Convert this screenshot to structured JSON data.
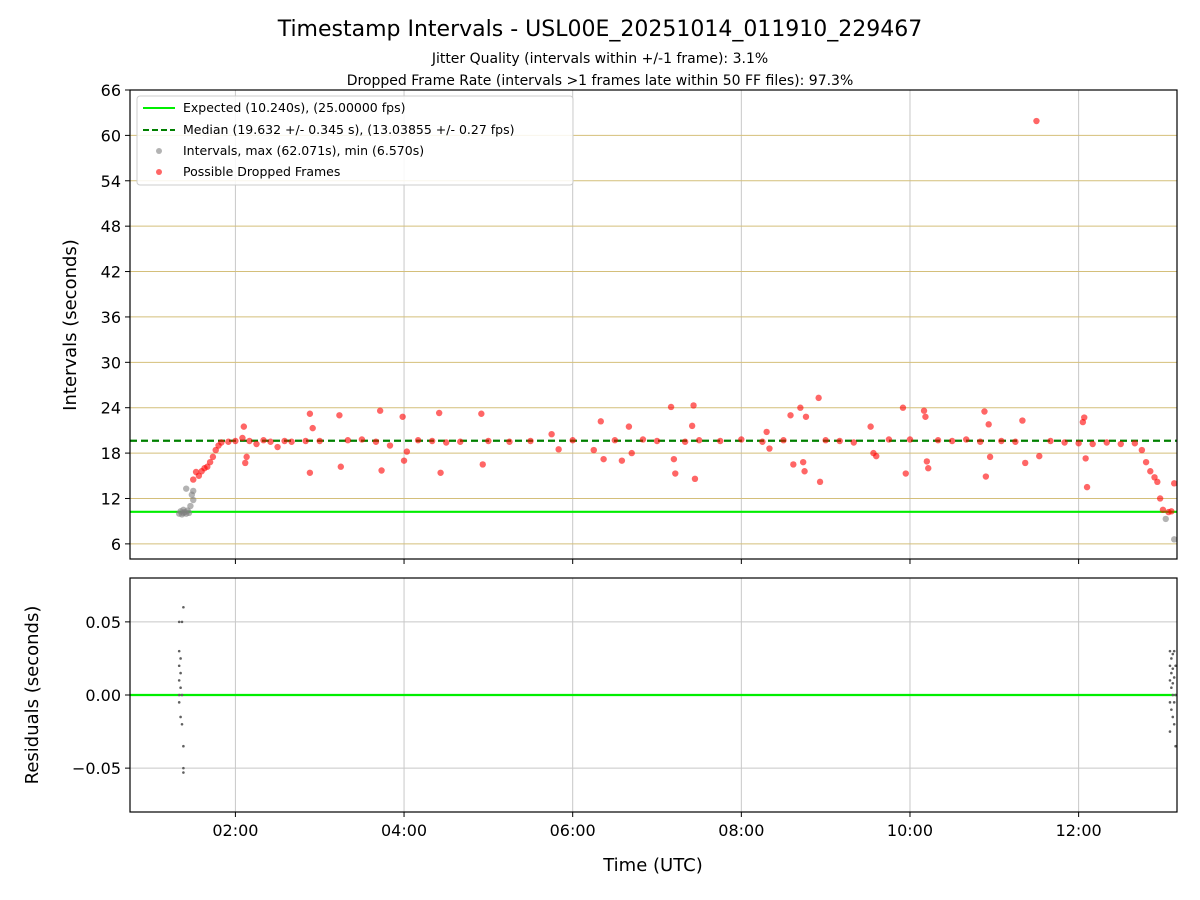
{
  "chart_data": [
    {
      "type": "scatter",
      "title": "Timestamp Intervals - USL00E_20251014_011910_229467",
      "subtitles": [
        "Jitter Quality (intervals within +/-1 frame): 3.1%",
        "Dropped Frame Rate (intervals >1 frames late within 50 FF files): 97.3%"
      ],
      "xlabel": "",
      "ylabel": "Intervals (seconds)",
      "xlim": [
        "00:45",
        "13:10"
      ],
      "ylim": [
        4,
        66
      ],
      "yticks": [
        6,
        12,
        18,
        24,
        30,
        36,
        42,
        48,
        54,
        60,
        66
      ],
      "grid": true,
      "legend_position": "upper-left",
      "expected_line": {
        "y": 10.24,
        "color": "#00ee00"
      },
      "median_line": {
        "y": 19.632,
        "color": "#008000"
      },
      "legend": [
        "Expected (10.240s), (25.00000 fps)",
        "Median (19.632 +/- 0.345 s), (13.03855 +/- 0.27 fps)",
        "Intervals, max (62.071s), min (6.570s)",
        "Possible Dropped Frames"
      ],
      "series": [
        {
          "name": "Intervals, max (62.071s), min (6.570s)",
          "color": "#808080",
          "points": [
            [
              "01:20",
              10.0
            ],
            [
              "01:21",
              10.3
            ],
            [
              "01:22",
              9.9
            ],
            [
              "01:23",
              10.1
            ],
            [
              "01:23",
              10.5
            ],
            [
              "01:24",
              10.2
            ],
            [
              "01:25",
              13.3
            ],
            [
              "01:25",
              10.0
            ],
            [
              "01:26",
              10.4
            ],
            [
              "01:27",
              10.1
            ],
            [
              "01:28",
              11.0
            ],
            [
              "01:29",
              12.5
            ],
            [
              "01:30",
              11.8
            ],
            [
              "01:30",
              13.0
            ],
            [
              "13:02",
              9.3
            ],
            [
              "13:08",
              6.6
            ]
          ]
        },
        {
          "name": "Possible Dropped Frames",
          "color": "#ff0000",
          "points": [
            [
              "01:30",
              14.5
            ],
            [
              "01:32",
              15.5
            ],
            [
              "01:34",
              15.0
            ],
            [
              "01:36",
              15.6
            ],
            [
              "01:38",
              16.0
            ],
            [
              "01:40",
              16.2
            ],
            [
              "01:42",
              16.8
            ],
            [
              "01:44",
              17.5
            ],
            [
              "01:46",
              18.4
            ],
            [
              "01:48",
              19.0
            ],
            [
              "01:50",
              19.4
            ],
            [
              "01:55",
              19.5
            ],
            [
              "02:00",
              19.6
            ],
            [
              "02:05",
              20.0
            ],
            [
              "02:06",
              21.5
            ],
            [
              "02:07",
              16.7
            ],
            [
              "02:08",
              17.5
            ],
            [
              "02:10",
              19.6
            ],
            [
              "02:15",
              19.2
            ],
            [
              "02:20",
              19.7
            ],
            [
              "02:25",
              19.5
            ],
            [
              "02:30",
              18.8
            ],
            [
              "02:35",
              19.6
            ],
            [
              "02:40",
              19.5
            ],
            [
              "02:50",
              19.6
            ],
            [
              "02:53",
              23.2
            ],
            [
              "02:53",
              15.4
            ],
            [
              "02:55",
              21.3
            ],
            [
              "03:00",
              19.6
            ],
            [
              "03:14",
              23.0
            ],
            [
              "03:15",
              16.2
            ],
            [
              "03:20",
              19.7
            ],
            [
              "03:30",
              19.8
            ],
            [
              "03:40",
              19.5
            ],
            [
              "03:43",
              23.6
            ],
            [
              "03:44",
              15.7
            ],
            [
              "03:50",
              19.0
            ],
            [
              "03:59",
              22.8
            ],
            [
              "04:00",
              17.0
            ],
            [
              "04:02",
              18.2
            ],
            [
              "04:10",
              19.7
            ],
            [
              "04:20",
              19.6
            ],
            [
              "04:25",
              23.3
            ],
            [
              "04:26",
              15.4
            ],
            [
              "04:30",
              19.4
            ],
            [
              "04:40",
              19.5
            ],
            [
              "04:55",
              23.2
            ],
            [
              "04:56",
              16.5
            ],
            [
              "05:00",
              19.6
            ],
            [
              "05:15",
              19.5
            ],
            [
              "05:30",
              19.6
            ],
            [
              "05:45",
              20.5
            ],
            [
              "05:50",
              18.5
            ],
            [
              "06:00",
              19.7
            ],
            [
              "06:15",
              18.4
            ],
            [
              "06:20",
              22.2
            ],
            [
              "06:22",
              17.2
            ],
            [
              "06:30",
              19.7
            ],
            [
              "06:35",
              17.0
            ],
            [
              "06:40",
              21.5
            ],
            [
              "06:42",
              18.0
            ],
            [
              "06:50",
              19.8
            ],
            [
              "07:00",
              19.6
            ],
            [
              "07:10",
              24.1
            ],
            [
              "07:12",
              17.2
            ],
            [
              "07:13",
              15.3
            ],
            [
              "07:20",
              19.5
            ],
            [
              "07:25",
              21.6
            ],
            [
              "07:26",
              24.3
            ],
            [
              "07:27",
              14.6
            ],
            [
              "07:30",
              19.7
            ],
            [
              "07:45",
              19.6
            ],
            [
              "08:00",
              19.8
            ],
            [
              "08:15",
              19.5
            ],
            [
              "08:18",
              20.8
            ],
            [
              "08:20",
              18.6
            ],
            [
              "08:30",
              19.7
            ],
            [
              "08:35",
              23.0
            ],
            [
              "08:37",
              16.5
            ],
            [
              "08:42",
              24.0
            ],
            [
              "08:44",
              16.8
            ],
            [
              "08:45",
              15.6
            ],
            [
              "08:46",
              22.8
            ],
            [
              "08:55",
              25.3
            ],
            [
              "08:56",
              14.2
            ],
            [
              "09:00",
              19.7
            ],
            [
              "09:10",
              19.6
            ],
            [
              "09:20",
              19.4
            ],
            [
              "09:32",
              21.5
            ],
            [
              "09:34",
              18.0
            ],
            [
              "09:36",
              17.6
            ],
            [
              "09:45",
              19.8
            ],
            [
              "09:55",
              24.0
            ],
            [
              "09:57",
              15.3
            ],
            [
              "10:00",
              19.8
            ],
            [
              "10:10",
              23.6
            ],
            [
              "10:11",
              22.8
            ],
            [
              "10:12",
              16.9
            ],
            [
              "10:13",
              16.0
            ],
            [
              "10:20",
              19.7
            ],
            [
              "10:30",
              19.6
            ],
            [
              "10:40",
              19.8
            ],
            [
              "10:50",
              19.5
            ],
            [
              "10:53",
              23.5
            ],
            [
              "10:54",
              14.9
            ],
            [
              "10:56",
              21.8
            ],
            [
              "10:57",
              17.5
            ],
            [
              "11:05",
              19.6
            ],
            [
              "11:15",
              19.5
            ],
            [
              "11:20",
              22.3
            ],
            [
              "11:22",
              16.7
            ],
            [
              "11:30",
              61.9
            ],
            [
              "11:32",
              17.6
            ],
            [
              "11:40",
              19.6
            ],
            [
              "11:50",
              19.4
            ],
            [
              "12:00",
              19.3
            ],
            [
              "12:03",
              22.1
            ],
            [
              "12:04",
              22.7
            ],
            [
              "12:05",
              17.3
            ],
            [
              "12:06",
              13.5
            ],
            [
              "12:10",
              19.2
            ],
            [
              "12:20",
              19.4
            ],
            [
              "12:30",
              19.2
            ],
            [
              "12:40",
              19.3
            ],
            [
              "12:45",
              18.4
            ],
            [
              "12:48",
              16.8
            ],
            [
              "12:51",
              15.6
            ],
            [
              "12:54",
              14.8
            ],
            [
              "12:56",
              14.2
            ],
            [
              "12:58",
              12.0
            ],
            [
              "13:00",
              10.5
            ],
            [
              "13:04",
              10.2
            ],
            [
              "13:06",
              10.3
            ],
            [
              "13:08",
              14.0
            ]
          ]
        }
      ]
    },
    {
      "type": "scatter",
      "xlabel": "Time (UTC)",
      "ylabel": "Residuals (seconds)",
      "xlim": [
        "00:45",
        "13:10"
      ],
      "ylim": [
        -0.08,
        0.08
      ],
      "xticks": [
        "02:00",
        "04:00",
        "06:00",
        "08:00",
        "10:00",
        "12:00"
      ],
      "yticks": [
        0.05,
        0.0,
        -0.05
      ],
      "ytick_labels": [
        "0.05",
        "0.00",
        "−0.05"
      ],
      "grid": true,
      "zero_line": {
        "y": 0.0,
        "color": "#00ee00"
      },
      "series": [
        {
          "color": "#606060",
          "points": [
            [
              "01:20",
              0.05
            ],
            [
              "01:20",
              0.03
            ],
            [
              "01:20",
              0.02
            ],
            [
              "01:20",
              0.01
            ],
            [
              "01:20",
              0.0
            ],
            [
              "01:20",
              -0.005
            ],
            [
              "01:21",
              0.025
            ],
            [
              "01:21",
              0.015
            ],
            [
              "01:21",
              0.005
            ],
            [
              "01:21",
              -0.015
            ],
            [
              "01:22",
              0.05
            ],
            [
              "01:22",
              -0.02
            ],
            [
              "01:22",
              0.0
            ],
            [
              "01:23",
              0.06
            ],
            [
              "01:23",
              -0.035
            ],
            [
              "01:23",
              -0.05
            ],
            [
              "01:23",
              -0.053
            ],
            [
              "13:05",
              0.03
            ],
            [
              "13:05",
              0.02
            ],
            [
              "13:05",
              0.01
            ],
            [
              "13:05",
              -0.005
            ],
            [
              "13:05",
              -0.025
            ],
            [
              "13:06",
              0.025
            ],
            [
              "13:06",
              0.015
            ],
            [
              "13:06",
              0.005
            ],
            [
              "13:06",
              -0.01
            ],
            [
              "13:07",
              0.028
            ],
            [
              "13:07",
              0.018
            ],
            [
              "13:07",
              0.008
            ],
            [
              "13:07",
              0.0
            ],
            [
              "13:07",
              -0.015
            ],
            [
              "13:08",
              0.03
            ],
            [
              "13:08",
              0.012
            ],
            [
              "13:08",
              -0.005
            ],
            [
              "13:08",
              -0.02
            ],
            [
              "13:09",
              0.02
            ],
            [
              "13:09",
              0.0
            ],
            [
              "13:09",
              -0.035
            ]
          ]
        }
      ]
    }
  ]
}
